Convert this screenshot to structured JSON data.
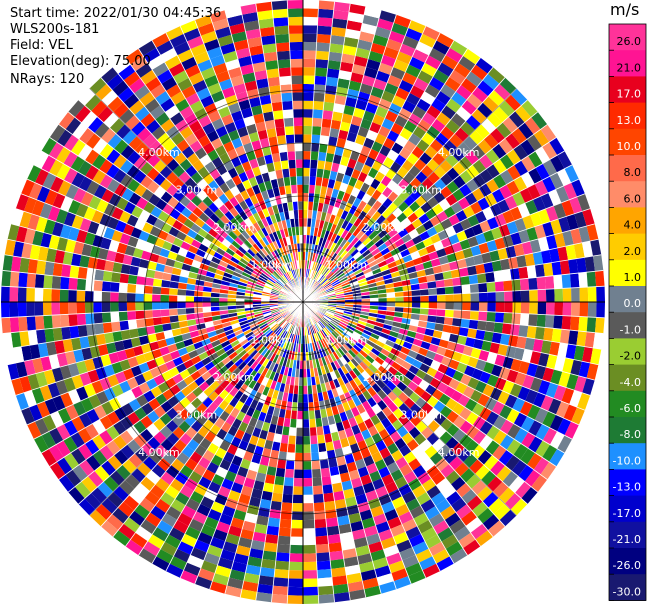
{
  "header": {
    "start_time": "Start time: 2022/01/30 04:45:36",
    "instrument": "WLS200s-181",
    "field": "Field: VEL",
    "elevation": "Elevation(deg): 75.00",
    "nrays": "NRays: 120"
  },
  "colorbar": {
    "unit": "m/s",
    "ticks": [
      "26.0",
      "21.0",
      "17.0",
      "13.0",
      "10.0",
      "8.0",
      "6.0",
      "4.0",
      "2.0",
      "1.0",
      "0.0",
      "-1.0",
      "-2.0",
      "-4.0",
      "-6.0",
      "-8.0",
      "-10.0",
      "-13.0",
      "-17.0",
      "-21.0",
      "-26.0",
      "-30.0"
    ],
    "colors": [
      "#ff3399",
      "#ff1493",
      "#e8001e",
      "#ff2a00",
      "#ff4500",
      "#ff6a4a",
      "#ff8c69",
      "#ffa500",
      "#ffcc00",
      "#ffff00",
      "#708090",
      "#5a5a5a",
      "#9acd32",
      "#6b8e23",
      "#228b22",
      "#1e7b34",
      "#1e90ff",
      "#0000ff",
      "#0000cd",
      "#1010a0",
      "#000080",
      "#191970"
    ]
  },
  "chart_data": {
    "type": "heatmap",
    "projection": "polar (PPI)",
    "field": "VEL",
    "unit": "m/s",
    "elevation_deg": 75.0,
    "n_rays": 120,
    "range_rings_km": [
      1.0,
      2.0,
      3.0,
      4.0
    ],
    "range_ring_labels": [
      "1.00km",
      "2.00km",
      "3.00km",
      "4.00km"
    ],
    "value_range": [
      -30.0,
      26.0
    ],
    "note_values": "velocity field rendered as noisy multicolor gates across all 120 rays"
  }
}
